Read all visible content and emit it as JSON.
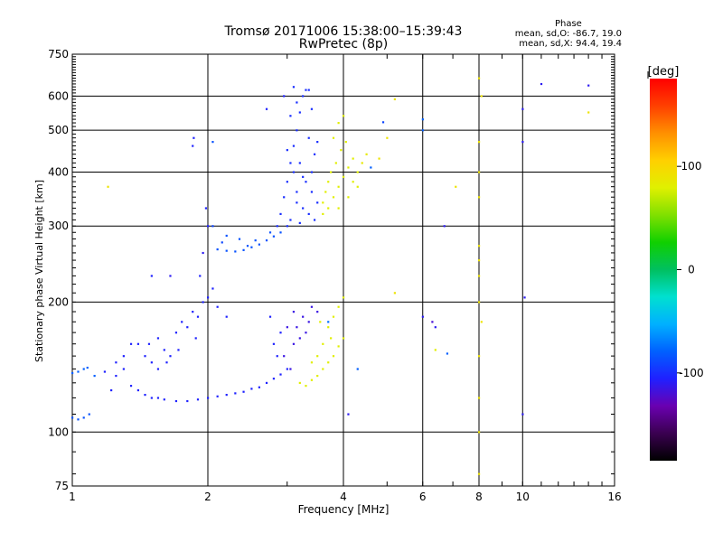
{
  "title_line1": "Tromsø 20171006 15:38:00–15:39:43",
  "title_line2": "RwPretec (8p)",
  "phase_info": {
    "heading": "Phase",
    "o_line": "mean, sd,O: -86.7, 19.0",
    "x_line": "mean, sd,X:  94.4, 19.4"
  },
  "colorbar": {
    "unit_label": "[deg]",
    "ticks": [
      {
        "value": 100,
        "label": "100"
      },
      {
        "value": 0,
        "label": "0"
      },
      {
        "value": -100,
        "label": "-100"
      }
    ],
    "range": [
      -185,
      185
    ],
    "colors": [
      "#000000",
      "#3a0050",
      "#6a00b0",
      "#2020ff",
      "#0060ff",
      "#00b0ff",
      "#00e0d0",
      "#00c060",
      "#10d000",
      "#80e000",
      "#e0f000",
      "#ffd000",
      "#ff9000",
      "#ff4000",
      "#ff0000"
    ]
  },
  "chart_data": {
    "type": "scatter",
    "xlabel": "Frequency [MHz]",
    "ylabel": "Stationary phase Virtual Height [km]",
    "xscale": "log",
    "yscale": "log",
    "xlim": [
      1,
      16
    ],
    "ylim": [
      75,
      750
    ],
    "xticks": [
      {
        "value": 1,
        "label": "1"
      },
      {
        "value": 2,
        "label": "2"
      },
      {
        "value": 4,
        "label": "4"
      },
      {
        "value": 6,
        "label": "6"
      },
      {
        "value": 8,
        "label": "8"
      },
      {
        "value": 10,
        "label": "10"
      },
      {
        "value": 16,
        "label": "16"
      }
    ],
    "yticks": [
      {
        "value": 75,
        "label": "75"
      },
      {
        "value": 100,
        "label": "100"
      },
      {
        "value": 200,
        "label": "200"
      },
      {
        "value": 300,
        "label": "300"
      },
      {
        "value": 400,
        "label": "400"
      },
      {
        "value": 500,
        "label": "500"
      },
      {
        "value": 600,
        "label": "600"
      },
      {
        "value": 750,
        "label": "750"
      }
    ],
    "grid": true,
    "series": [
      {
        "points": [
          [
            1.0,
            108,
            -85
          ],
          [
            1.03,
            107,
            -85
          ],
          [
            1.06,
            108,
            -85
          ],
          [
            1.09,
            110,
            -85
          ],
          [
            1.0,
            137,
            -80
          ],
          [
            1.03,
            138,
            -80
          ],
          [
            1.06,
            140,
            -80
          ],
          [
            1.08,
            141,
            -80
          ],
          [
            1.18,
            138,
            -105
          ],
          [
            1.22,
            125,
            -105
          ],
          [
            1.25,
            135,
            -105
          ],
          [
            1.3,
            140,
            -105
          ],
          [
            1.35,
            128,
            -105
          ],
          [
            1.4,
            125,
            -105
          ],
          [
            1.45,
            122,
            -105
          ],
          [
            1.5,
            120,
            -105
          ],
          [
            1.55,
            120,
            -105
          ],
          [
            1.6,
            119,
            -105
          ],
          [
            1.7,
            118,
            -105
          ],
          [
            1.8,
            118,
            -105
          ],
          [
            1.9,
            119,
            -105
          ],
          [
            2.0,
            120,
            -105
          ],
          [
            2.1,
            121,
            -105
          ],
          [
            2.2,
            122,
            -105
          ],
          [
            2.3,
            123,
            -105
          ],
          [
            2.4,
            124,
            -105
          ],
          [
            2.5,
            126,
            -105
          ],
          [
            2.6,
            127,
            -105
          ],
          [
            2.7,
            130,
            -105
          ],
          [
            2.8,
            133,
            -105
          ],
          [
            2.9,
            136,
            -105
          ],
          [
            3.0,
            140,
            -105
          ],
          [
            1.4,
            160,
            -105
          ],
          [
            1.45,
            150,
            -105
          ],
          [
            1.5,
            145,
            -105
          ],
          [
            1.55,
            165,
            -105
          ],
          [
            1.6,
            155,
            -105
          ],
          [
            1.65,
            150,
            -105
          ],
          [
            1.7,
            170,
            -105
          ],
          [
            1.75,
            180,
            -105
          ],
          [
            1.8,
            175,
            -105
          ],
          [
            1.85,
            190,
            -105
          ],
          [
            1.9,
            185,
            -105
          ],
          [
            1.95,
            200,
            -105
          ],
          [
            2.0,
            205,
            -105
          ],
          [
            2.05,
            215,
            -105
          ],
          [
            2.1,
            195,
            -105
          ],
          [
            2.2,
            185,
            -105
          ],
          [
            1.3,
            150,
            -105
          ],
          [
            1.35,
            160,
            -105
          ],
          [
            1.25,
            145,
            -105
          ],
          [
            1.55,
            140,
            -105
          ],
          [
            1.48,
            160,
            -105
          ],
          [
            1.62,
            145,
            -105
          ],
          [
            1.72,
            155,
            -105
          ],
          [
            1.88,
            165,
            -105
          ],
          [
            1.92,
            230,
            -105
          ],
          [
            1.95,
            260,
            -110
          ],
          [
            2.0,
            300,
            -105
          ],
          [
            1.98,
            330,
            -105
          ],
          [
            1.85,
            460,
            -105
          ],
          [
            1.86,
            480,
            -105
          ],
          [
            2.05,
            470,
            -85
          ],
          [
            1.5,
            230,
            -105
          ],
          [
            2.1,
            265,
            -85
          ],
          [
            2.2,
            263,
            -85
          ],
          [
            2.3,
            262,
            -85
          ],
          [
            2.4,
            264,
            -85
          ],
          [
            2.5,
            268,
            -85
          ],
          [
            2.6,
            272,
            -85
          ],
          [
            2.7,
            278,
            -85
          ],
          [
            2.8,
            284,
            -85
          ],
          [
            2.9,
            290,
            -85
          ],
          [
            2.2,
            285,
            -85
          ],
          [
            2.35,
            280,
            -85
          ],
          [
            2.55,
            278,
            -85
          ],
          [
            2.05,
            300,
            -90
          ],
          [
            2.15,
            275,
            -90
          ],
          [
            2.45,
            270,
            -85
          ],
          [
            2.75,
            290,
            -85
          ],
          [
            2.85,
            300,
            -100
          ],
          [
            2.9,
            320,
            -100
          ],
          [
            2.95,
            350,
            -100
          ],
          [
            3.0,
            380,
            -100
          ],
          [
            3.05,
            420,
            -100
          ],
          [
            3.1,
            460,
            -100
          ],
          [
            3.15,
            500,
            -100
          ],
          [
            3.2,
            550,
            -100
          ],
          [
            3.25,
            600,
            -100
          ],
          [
            3.3,
            620,
            -100
          ],
          [
            3.0,
            450,
            -100
          ],
          [
            3.1,
            400,
            -100
          ],
          [
            3.2,
            420,
            -100
          ],
          [
            3.3,
            380,
            -100
          ],
          [
            3.4,
            360,
            -100
          ],
          [
            3.5,
            340,
            -100
          ],
          [
            3.15,
            340,
            -100
          ],
          [
            3.25,
            330,
            -100
          ],
          [
            3.35,
            320,
            -100
          ],
          [
            3.45,
            310,
            -100
          ],
          [
            3.05,
            540,
            -100
          ],
          [
            3.15,
            580,
            -100
          ],
          [
            3.35,
            480,
            -100
          ],
          [
            3.45,
            440,
            -100
          ],
          [
            3.4,
            560,
            -100
          ],
          [
            3.35,
            620,
            -100
          ],
          [
            3.1,
            630,
            -100
          ],
          [
            3.05,
            310,
            -100
          ],
          [
            3.2,
            305,
            -100
          ],
          [
            3.25,
            390,
            -100
          ],
          [
            3.4,
            400,
            -100
          ],
          [
            3.5,
            470,
            -100
          ],
          [
            2.95,
            600,
            -105
          ],
          [
            3.15,
            360,
            -100
          ],
          [
            2.7,
            560,
            -105
          ],
          [
            3.0,
            300,
            -100
          ],
          [
            3.6,
            320,
            80
          ],
          [
            3.7,
            330,
            80
          ],
          [
            3.8,
            350,
            80
          ],
          [
            3.9,
            370,
            80
          ],
          [
            4.0,
            390,
            80
          ],
          [
            4.1,
            410,
            80
          ],
          [
            4.2,
            430,
            80
          ],
          [
            3.75,
            400,
            80
          ],
          [
            3.85,
            420,
            80
          ],
          [
            3.95,
            450,
            80
          ],
          [
            4.05,
            470,
            80
          ],
          [
            3.7,
            380,
            80
          ],
          [
            3.8,
            480,
            80
          ],
          [
            3.9,
            520,
            80
          ],
          [
            4.0,
            540,
            80
          ],
          [
            3.65,
            360,
            80
          ],
          [
            4.2,
            380,
            80
          ],
          [
            4.3,
            400,
            80
          ],
          [
            4.4,
            420,
            85
          ],
          [
            4.5,
            440,
            85
          ],
          [
            3.6,
            340,
            80
          ],
          [
            3.9,
            330,
            80
          ],
          [
            4.1,
            350,
            80
          ],
          [
            4.3,
            370,
            80
          ],
          [
            3.2,
            130,
            80
          ],
          [
            3.3,
            128,
            80
          ],
          [
            3.4,
            132,
            80
          ],
          [
            3.5,
            135,
            80
          ],
          [
            3.6,
            140,
            80
          ],
          [
            3.7,
            145,
            80
          ],
          [
            3.8,
            150,
            80
          ],
          [
            3.9,
            158,
            80
          ],
          [
            4.0,
            165,
            80
          ],
          [
            3.7,
            175,
            80
          ],
          [
            3.8,
            185,
            80
          ],
          [
            3.9,
            195,
            80
          ],
          [
            3.6,
            160,
            80
          ],
          [
            3.5,
            150,
            80
          ],
          [
            3.4,
            145,
            80
          ],
          [
            3.75,
            165,
            80
          ],
          [
            3.05,
            140,
            -115
          ],
          [
            3.1,
            160,
            -115
          ],
          [
            3.15,
            175,
            -115
          ],
          [
            3.2,
            165,
            -115
          ],
          [
            3.25,
            185,
            -115
          ],
          [
            3.3,
            170,
            -115
          ],
          [
            3.35,
            180,
            -115
          ],
          [
            3.0,
            175,
            -115
          ],
          [
            3.5,
            190,
            -115
          ],
          [
            3.4,
            195,
            -115
          ],
          [
            2.95,
            150,
            -115
          ],
          [
            3.1,
            190,
            -115
          ],
          [
            2.75,
            185,
            -105
          ],
          [
            2.8,
            160,
            -105
          ],
          [
            2.85,
            150,
            -105
          ],
          [
            2.9,
            170,
            -105
          ],
          [
            1.65,
            230,
            -110
          ],
          [
            4.1,
            110,
            -110
          ],
          [
            6.0,
            185,
            -110
          ],
          [
            6.4,
            175,
            -110
          ],
          [
            6.7,
            300,
            -110
          ],
          [
            10.0,
            110,
            -110
          ],
          [
            10.1,
            205,
            -110
          ],
          [
            10.0,
            470,
            -110
          ],
          [
            10.0,
            560,
            -110
          ],
          [
            11.0,
            640,
            -110
          ],
          [
            14.0,
            635,
            -110
          ],
          [
            1.2,
            370,
            90
          ],
          [
            7.1,
            370,
            90
          ],
          [
            5.2,
            210,
            90
          ],
          [
            6.4,
            155,
            80
          ],
          [
            5.2,
            590,
            90
          ],
          [
            4.8,
            430,
            90
          ],
          [
            5.0,
            480,
            90
          ],
          [
            8.0,
            270,
            90
          ],
          [
            8.0,
            250,
            90
          ],
          [
            8.1,
            180,
            90
          ],
          [
            8.0,
            150,
            90
          ],
          [
            8.0,
            120,
            90
          ],
          [
            8.0,
            100,
            90
          ],
          [
            8.0,
            80,
            90
          ],
          [
            8.0,
            470,
            90
          ],
          [
            8.0,
            400,
            90
          ],
          [
            8.0,
            660,
            90
          ],
          [
            8.1,
            600,
            90
          ],
          [
            8.0,
            200,
            90
          ],
          [
            8.0,
            230,
            90
          ],
          [
            8.0,
            350,
            90
          ],
          [
            6.0,
            500,
            -80
          ],
          [
            6.0,
            530,
            -80
          ],
          [
            3.7,
            180,
            -75
          ],
          [
            4.6,
            410,
            -80
          ],
          [
            1.12,
            135,
            -80
          ],
          [
            4.0,
            205,
            80
          ],
          [
            3.55,
            180,
            80
          ],
          [
            14.0,
            550,
            90
          ],
          [
            6.3,
            180,
            -120
          ],
          [
            4.3,
            140,
            -80
          ],
          [
            6.8,
            152,
            -80
          ],
          [
            4.9,
            522,
            -90
          ]
        ]
      }
    ]
  }
}
